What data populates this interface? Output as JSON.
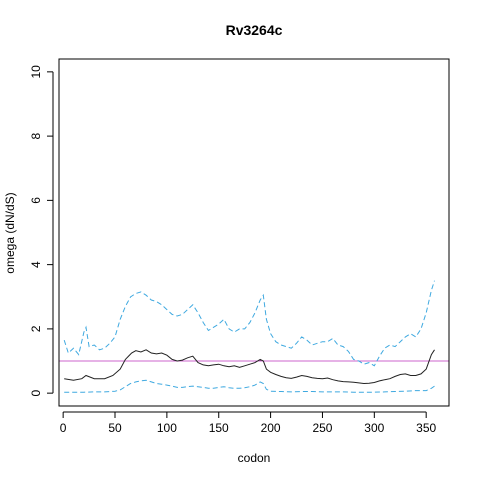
{
  "chart_data": {
    "type": "line",
    "title": "Rv3264c",
    "xlabel": "codon",
    "ylabel": "omega (dN/dS)",
    "xlim": [
      -4,
      372
    ],
    "ylim": [
      -0.4,
      10.4
    ],
    "xticks": [
      0,
      50,
      100,
      150,
      200,
      250,
      300,
      350
    ],
    "yticks": [
      0,
      2,
      4,
      6,
      8,
      10
    ],
    "grid": false,
    "reference_line": {
      "y": 1,
      "color": "#cc66cc"
    },
    "series": [
      {
        "role": "estimate",
        "color": "#222222",
        "dashed": false,
        "x": [
          1,
          10,
          18,
          22,
          30,
          40,
          48,
          55,
          60,
          66,
          70,
          75,
          80,
          85,
          90,
          95,
          100,
          105,
          110,
          115,
          120,
          125,
          130,
          135,
          140,
          145,
          150,
          155,
          160,
          165,
          170,
          175,
          180,
          185,
          190,
          193,
          196,
          200,
          205,
          210,
          215,
          220,
          225,
          230,
          235,
          240,
          245,
          250,
          255,
          260,
          265,
          270,
          275,
          280,
          285,
          290,
          295,
          300,
          305,
          310,
          315,
          320,
          325,
          330,
          335,
          340,
          345,
          350,
          355,
          358
        ],
        "y": [
          0.45,
          0.4,
          0.45,
          0.55,
          0.45,
          0.45,
          0.55,
          0.75,
          1.05,
          1.25,
          1.32,
          1.28,
          1.35,
          1.25,
          1.22,
          1.25,
          1.18,
          1.05,
          1.0,
          1.03,
          1.1,
          1.15,
          0.95,
          0.88,
          0.85,
          0.88,
          0.9,
          0.85,
          0.82,
          0.85,
          0.8,
          0.85,
          0.9,
          0.95,
          1.05,
          1.0,
          0.75,
          0.65,
          0.58,
          0.52,
          0.48,
          0.46,
          0.5,
          0.55,
          0.52,
          0.48,
          0.46,
          0.45,
          0.47,
          0.42,
          0.38,
          0.36,
          0.35,
          0.34,
          0.32,
          0.3,
          0.31,
          0.33,
          0.38,
          0.42,
          0.45,
          0.52,
          0.58,
          0.6,
          0.55,
          0.55,
          0.6,
          0.75,
          1.2,
          1.35
        ]
      },
      {
        "role": "upper-bound",
        "color": "#3fa9e0",
        "dashed": true,
        "x": [
          1,
          5,
          10,
          15,
          20,
          22,
          25,
          30,
          35,
          40,
          45,
          50,
          55,
          60,
          65,
          70,
          75,
          80,
          85,
          90,
          95,
          100,
          105,
          110,
          115,
          120,
          125,
          130,
          135,
          140,
          145,
          150,
          155,
          160,
          165,
          170,
          175,
          180,
          185,
          190,
          193,
          196,
          200,
          205,
          210,
          215,
          220,
          225,
          230,
          235,
          240,
          245,
          250,
          255,
          260,
          265,
          270,
          275,
          280,
          285,
          290,
          295,
          300,
          305,
          310,
          315,
          320,
          325,
          330,
          335,
          340,
          345,
          350,
          355,
          358
        ],
        "y": [
          1.65,
          1.25,
          1.4,
          1.2,
          1.9,
          2.05,
          1.45,
          1.5,
          1.35,
          1.4,
          1.55,
          1.75,
          2.3,
          2.7,
          3.0,
          3.1,
          3.15,
          3.05,
          2.9,
          2.85,
          2.75,
          2.6,
          2.45,
          2.4,
          2.45,
          2.6,
          2.75,
          2.5,
          2.2,
          1.95,
          2.05,
          2.15,
          2.3,
          2.0,
          1.9,
          2.0,
          2.0,
          2.2,
          2.5,
          2.9,
          3.05,
          2.3,
          1.85,
          1.6,
          1.5,
          1.45,
          1.4,
          1.55,
          1.75,
          1.65,
          1.5,
          1.55,
          1.6,
          1.6,
          1.7,
          1.5,
          1.45,
          1.3,
          1.05,
          1.0,
          0.9,
          0.95,
          0.85,
          1.15,
          1.4,
          1.5,
          1.45,
          1.6,
          1.75,
          1.85,
          1.75,
          2.0,
          2.5,
          3.2,
          3.5
        ]
      },
      {
        "role": "lower-bound",
        "color": "#3fa9e0",
        "dashed": true,
        "x": [
          1,
          10,
          20,
          30,
          40,
          50,
          55,
          60,
          65,
          70,
          75,
          80,
          85,
          90,
          95,
          100,
          105,
          110,
          115,
          120,
          125,
          130,
          135,
          140,
          145,
          150,
          155,
          160,
          165,
          170,
          175,
          180,
          185,
          190,
          193,
          196,
          200,
          210,
          220,
          230,
          240,
          250,
          260,
          270,
          280,
          290,
          300,
          310,
          320,
          330,
          340,
          350,
          355,
          358
        ],
        "y": [
          0.03,
          0.03,
          0.03,
          0.04,
          0.04,
          0.06,
          0.1,
          0.2,
          0.3,
          0.35,
          0.38,
          0.4,
          0.35,
          0.3,
          0.28,
          0.25,
          0.22,
          0.18,
          0.18,
          0.2,
          0.22,
          0.2,
          0.18,
          0.15,
          0.15,
          0.18,
          0.2,
          0.17,
          0.15,
          0.15,
          0.17,
          0.2,
          0.25,
          0.35,
          0.3,
          0.12,
          0.06,
          0.05,
          0.04,
          0.05,
          0.05,
          0.04,
          0.04,
          0.04,
          0.03,
          0.03,
          0.03,
          0.04,
          0.05,
          0.06,
          0.08,
          0.08,
          0.15,
          0.22
        ]
      }
    ]
  }
}
